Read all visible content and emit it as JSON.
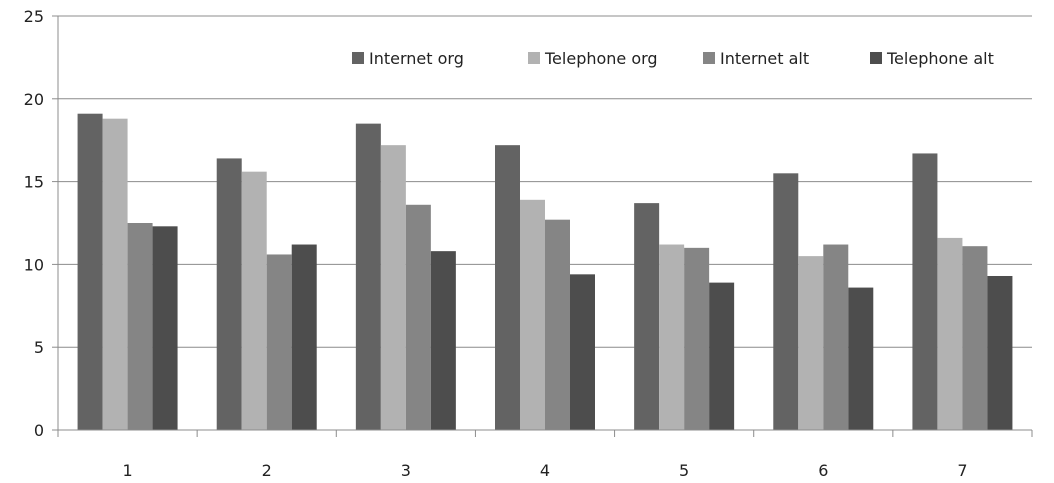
{
  "chart_data": {
    "type": "bar",
    "categories": [
      "1",
      "2",
      "3",
      "4",
      "5",
      "6",
      "7"
    ],
    "series": [
      {
        "name": "Internet org",
        "color": "#636363",
        "values": [
          19.1,
          16.4,
          18.5,
          17.2,
          13.7,
          15.5,
          16.7
        ]
      },
      {
        "name": "Telephone org",
        "color": "#b2b2b2",
        "values": [
          18.8,
          15.6,
          17.2,
          13.9,
          11.2,
          10.5,
          11.6
        ]
      },
      {
        "name": "Internet alt",
        "color": "#858585",
        "values": [
          12.5,
          10.6,
          13.6,
          12.7,
          11.0,
          11.2,
          11.1
        ]
      },
      {
        "name": "Telephone alt",
        "color": "#4d4d4d",
        "values": [
          12.3,
          11.2,
          10.8,
          9.4,
          8.9,
          8.6,
          9.3
        ]
      }
    ],
    "ylim": [
      0,
      25
    ],
    "yticks": [
      "0",
      "5",
      "10",
      "15",
      "20",
      "25"
    ],
    "grid": true,
    "legend_position": "top-right"
  }
}
